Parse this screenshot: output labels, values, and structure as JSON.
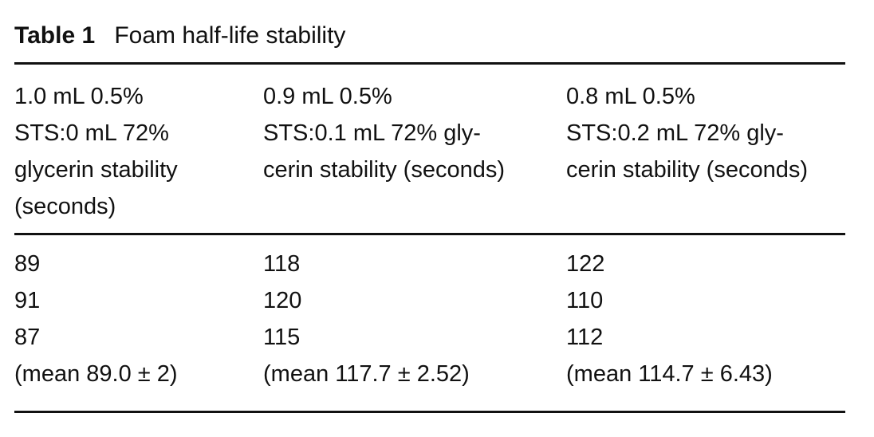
{
  "table": {
    "label": "Table 1",
    "title": "Foam half-life stability",
    "header": [
      [
        "1.0 mL 0.5%",
        "STS:0 mL 72%",
        "glycerin stability",
        "(seconds)"
      ],
      [
        "0.9 mL 0.5%",
        "STS:0.1 mL 72% gly-",
        "cerin stability (seconds)"
      ],
      [
        "0.8 mL 0.5%",
        "STS:0.2 mL 72% gly-",
        "cerin stability (seconds)"
      ]
    ],
    "rows": [
      [
        "89",
        "118",
        "122"
      ],
      [
        "91",
        "120",
        "110"
      ],
      [
        "87",
        "115",
        "112"
      ],
      [
        "(mean 89.0 ± 2)",
        "(mean 117.7 ± 2.52)",
        "(mean 114.7 ± 6.43)"
      ]
    ]
  }
}
